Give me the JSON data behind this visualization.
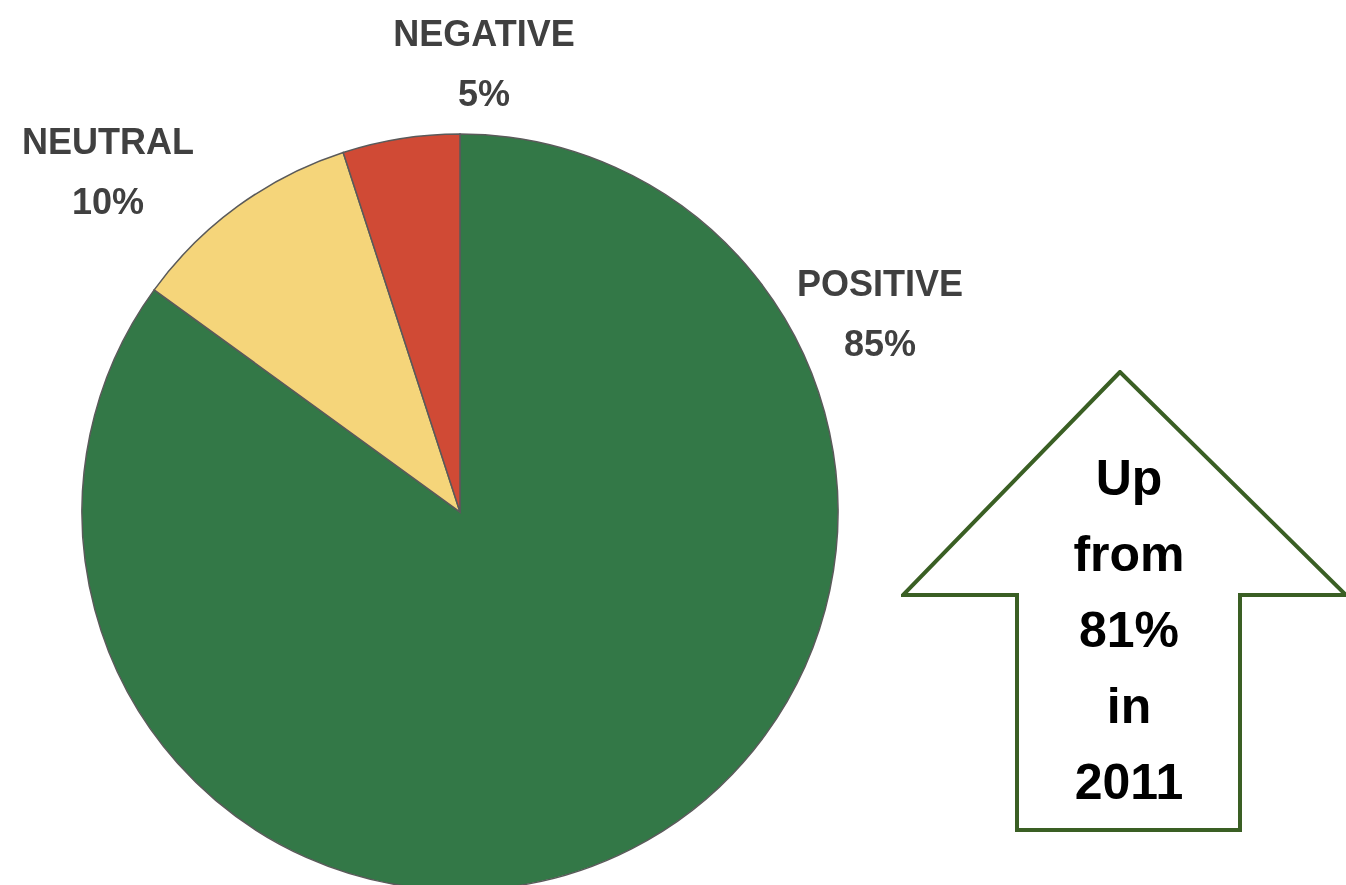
{
  "chart_data": {
    "type": "pie",
    "categories": [
      "POSITIVE",
      "NEUTRAL",
      "NEGATIVE"
    ],
    "values": [
      85,
      10,
      5
    ],
    "value_labels": [
      "85%",
      "10%",
      "5%"
    ],
    "colors": [
      "#337847",
      "#f5d57a",
      "#d04a35"
    ],
    "annotations": [
      "Up from 81% in 2011"
    ]
  }
}
